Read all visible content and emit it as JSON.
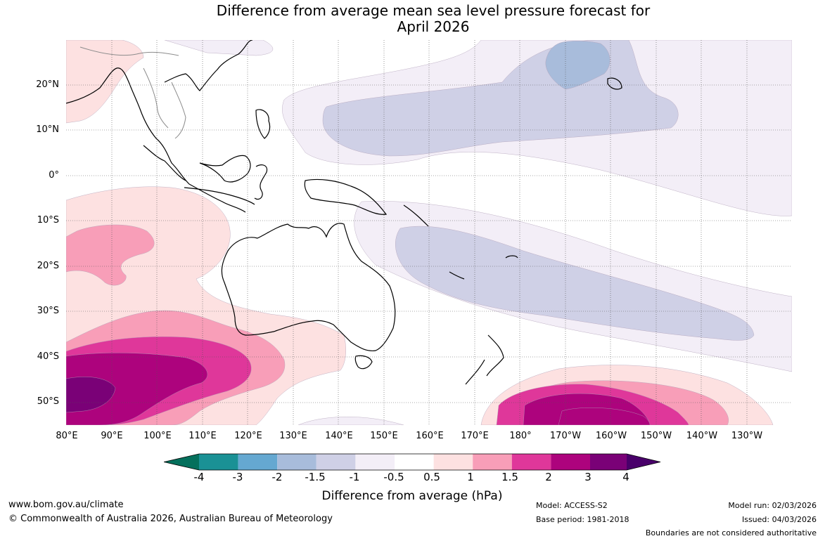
{
  "title": {
    "line1": "Difference from average mean sea level pressure forecast for",
    "line2": "April 2026"
  },
  "map": {
    "latitude_labels": [
      "20°N",
      "10°N",
      "0°",
      "10°S",
      "20°S",
      "30°S",
      "40°S",
      "50°S"
    ],
    "longitude_labels": [
      "80°E",
      "90°E",
      "100°E",
      "110°E",
      "120°E",
      "130°E",
      "140°E",
      "150°E",
      "160°E",
      "170°E",
      "180°",
      "170°W",
      "160°W",
      "150°W",
      "140°W",
      "130°W"
    ],
    "colors": {
      "neg_0_5_to_neg_1": "#f3eef7",
      "neg_1_to_neg_1_5": "#cfd0e6",
      "neg_1_5_to_neg_2": "#a8bcdb",
      "pos_0_5_to_1": "#fde1e1",
      "pos_1_to_1_5": "#f89eb8",
      "pos_1_5_to_2": "#df379a",
      "pos_2_to_3": "#ad037d",
      "pos_3_to_4": "#7a0177",
      "coast": "#000000",
      "borders": "#8c8c8c",
      "gridline": "#555555"
    }
  },
  "colorbar": {
    "ticks": [
      "-4",
      "-3",
      "-2",
      "-1.5",
      "-1",
      "-0.5",
      "0.5",
      "1",
      "1.5",
      "2",
      "3",
      "4"
    ],
    "colors": [
      "#04705c",
      "#1a9195",
      "#65a8d1",
      "#a8bcdb",
      "#cfd0e6",
      "#f3eef7",
      "#ffffff",
      "#fde1e1",
      "#f89eb8",
      "#df379a",
      "#ad037d",
      "#7a0177",
      "#49006a"
    ],
    "label": "Difference from average (hPa)"
  },
  "footer": {
    "website": "www.bom.gov.au/climate",
    "copyright": "© Commonwealth of Australia 2026, Australian Bureau of Meteorology",
    "model": "Model: ACCESS-S2",
    "base_period": "Base period: 1981-2018",
    "model_run": "Model run: 02/03/2026",
    "issued": "Issued: 04/03/2026",
    "disclaimer": "Boundaries are not considered authoritative"
  }
}
